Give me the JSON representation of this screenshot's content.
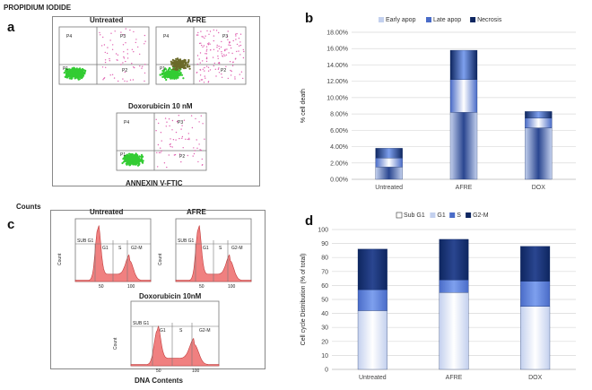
{
  "figure": {
    "panel_a": {
      "letter": "a",
      "y_axis_title": "PROPIDIUM IODIDE",
      "x_axis_title": "ANNEXIN V-FTIC",
      "plots": [
        {
          "title": "Untreated",
          "gates": [
            "P4",
            "P3",
            "P1",
            "P2"
          ]
        },
        {
          "title": "AFRE",
          "gates": [
            "P4",
            "P3",
            "P1",
            "P2"
          ]
        },
        {
          "title": "Doxorubicin 10 nM",
          "gates": [
            "P4",
            "P3",
            "P1",
            "P2"
          ]
        }
      ]
    },
    "panel_c": {
      "letter": "c",
      "y_axis_title": "Counts",
      "x_axis_title": "DNA Contents",
      "plots": [
        {
          "title": "Untreated",
          "gates": [
            "SUB G1",
            "G1",
            "S",
            "G2-M"
          ],
          "ylabel": "Count"
        },
        {
          "title": "AFRE",
          "gates": [
            "SUB G1",
            "G1",
            "S",
            "G2-M"
          ],
          "ylabel": "Count"
        },
        {
          "title": "Doxorubicin 10nM",
          "gates": [
            "SUB G1",
            "G1",
            "S",
            "G2-M"
          ],
          "ylabel": "Count"
        }
      ],
      "x_ticks": [
        "50",
        "100"
      ]
    },
    "panel_b_letter": "b",
    "panel_d_letter": "d"
  },
  "chart_data": [
    {
      "id": "b",
      "type": "bar",
      "stacked": true,
      "title": "",
      "categories": [
        "Untreated",
        "AFRE",
        "DOX"
      ],
      "series": [
        {
          "name": "Early apop",
          "values": [
            1.5,
            8.2,
            6.3
          ],
          "color": "#c3d0ee"
        },
        {
          "name": "Late apop",
          "values": [
            1.1,
            4.0,
            1.2
          ],
          "color": "#4a6cc8"
        },
        {
          "name": "Necrosis",
          "values": [
            1.2,
            3.6,
            0.8
          ],
          "color": "#0e2660"
        }
      ],
      "ylabel": "% cell death",
      "xlabel": "",
      "ylim": [
        0,
        18
      ],
      "yticks": [
        "0.00%",
        "2.00%",
        "4.00%",
        "6.00%",
        "8.00%",
        "10.00%",
        "12.00%",
        "14.00%",
        "16.00%",
        "18.00%"
      ],
      "legend": "top"
    },
    {
      "id": "d",
      "type": "bar",
      "stacked": true,
      "title": "",
      "categories": [
        "Untreated",
        "AFRE",
        "DOX"
      ],
      "series": [
        {
          "name": "Sub G1",
          "values": [
            0,
            0,
            0
          ],
          "color": "#ffffff"
        },
        {
          "name": "G1",
          "values": [
            42,
            55,
            45
          ],
          "color": "#c3d0ee"
        },
        {
          "name": "S",
          "values": [
            15,
            9,
            18
          ],
          "color": "#4a6cc8"
        },
        {
          "name": "G2-M",
          "values": [
            29,
            29,
            25
          ],
          "color": "#0e2660"
        }
      ],
      "ylabel": "Cell cycle Distribution (% of total)",
      "xlabel": "",
      "ylim": [
        0,
        100
      ],
      "yticks": [
        "0",
        "10",
        "20",
        "30",
        "40",
        "50",
        "60",
        "70",
        "80",
        "90",
        "100"
      ],
      "legend": "top"
    }
  ]
}
